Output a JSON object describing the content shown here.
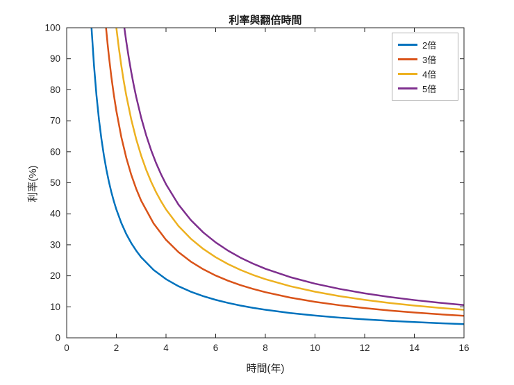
{
  "chart_data": {
    "type": "line",
    "title": "利率與翻倍時間",
    "xlabel": "時間(年)",
    "ylabel": "利率(%)",
    "xlim": [
      0,
      16
    ],
    "ylim": [
      0,
      100
    ],
    "x_ticks": [
      0,
      2,
      4,
      6,
      8,
      10,
      12,
      14,
      16
    ],
    "y_ticks": [
      0,
      10,
      20,
      30,
      40,
      50,
      60,
      70,
      80,
      90,
      100
    ],
    "grid": false,
    "legend_position": "top-right",
    "series": [
      {
        "name": "2倍",
        "color": "#0072BD",
        "points": [
          [
            1,
            100
          ],
          [
            1.1,
            87.84
          ],
          [
            1.2,
            78.18
          ],
          [
            1.3,
            70.43
          ],
          [
            1.4,
            64.07
          ],
          [
            1.5,
            58.74
          ],
          [
            1.6,
            54.22
          ],
          [
            1.7,
            50.34
          ],
          [
            1.8,
            46.97
          ],
          [
            1.9,
            44.03
          ],
          [
            2,
            41.42
          ],
          [
            2.2,
            37.04
          ],
          [
            2.4,
            33.48
          ],
          [
            2.6,
            30.56
          ],
          [
            2.8,
            28.11
          ],
          [
            3,
            25.99
          ],
          [
            3.5,
            21.9
          ],
          [
            4,
            18.92
          ],
          [
            4.5,
            16.65
          ],
          [
            5,
            14.87
          ],
          [
            5.5,
            13.43
          ],
          [
            6,
            12.25
          ],
          [
            6.5,
            11.25
          ],
          [
            7,
            10.41
          ],
          [
            7.5,
            9.68
          ],
          [
            8,
            9.05
          ],
          [
            9,
            8.01
          ],
          [
            10,
            7.18
          ],
          [
            11,
            6.5
          ],
          [
            12,
            5.95
          ],
          [
            13,
            5.48
          ],
          [
            14,
            5.08
          ],
          [
            15,
            4.73
          ],
          [
            16,
            4.43
          ]
        ]
      },
      {
        "name": "3倍",
        "color": "#D95319",
        "points": [
          [
            1.585,
            100
          ],
          [
            1.65,
            94.61
          ],
          [
            1.7,
            90.83
          ],
          [
            1.8,
            84.1
          ],
          [
            1.9,
            78.28
          ],
          [
            2,
            73.21
          ],
          [
            2.2,
            64.77
          ],
          [
            2.4,
            58.06
          ],
          [
            2.6,
            52.59
          ],
          [
            2.8,
            48.05
          ],
          [
            3,
            44.22
          ],
          [
            3.5,
            36.88
          ],
          [
            4,
            31.61
          ],
          [
            4.5,
            27.65
          ],
          [
            5,
            24.57
          ],
          [
            5.5,
            22.11
          ],
          [
            6,
            20.09
          ],
          [
            6.5,
            18.42
          ],
          [
            7,
            16.99
          ],
          [
            7.5,
            15.78
          ],
          [
            8,
            14.72
          ],
          [
            9,
            12.98
          ],
          [
            10,
            11.61
          ],
          [
            11,
            10.5
          ],
          [
            12,
            9.59
          ],
          [
            13,
            8.82
          ],
          [
            14,
            8.16
          ],
          [
            15,
            7.6
          ],
          [
            16,
            7.11
          ]
        ]
      },
      {
        "name": "4倍",
        "color": "#EDB120",
        "points": [
          [
            2,
            100
          ],
          [
            2.1,
            93.51
          ],
          [
            2.2,
            87.79
          ],
          [
            2.3,
            82.69
          ],
          [
            2.4,
            78.18
          ],
          [
            2.6,
            70.43
          ],
          [
            2.8,
            64.07
          ],
          [
            3,
            58.74
          ],
          [
            3.2,
            54.22
          ],
          [
            3.4,
            50.34
          ],
          [
            3.6,
            46.97
          ],
          [
            3.8,
            44.03
          ],
          [
            4,
            41.42
          ],
          [
            4.5,
            36.08
          ],
          [
            5,
            31.95
          ],
          [
            5.5,
            28.67
          ],
          [
            6,
            25.99
          ],
          [
            6.5,
            23.77
          ],
          [
            7,
            21.9
          ],
          [
            7.5,
            20.3
          ],
          [
            8,
            18.92
          ],
          [
            9,
            16.65
          ],
          [
            10,
            14.87
          ],
          [
            11,
            13.43
          ],
          [
            12,
            12.25
          ],
          [
            13,
            11.25
          ],
          [
            14,
            10.41
          ],
          [
            15,
            9.68
          ],
          [
            16,
            9.05
          ]
        ]
      },
      {
        "name": "5倍",
        "color": "#7E2F8E",
        "points": [
          [
            2.322,
            100
          ],
          [
            2.4,
            95.54
          ],
          [
            2.5,
            90.36
          ],
          [
            2.6,
            85.71
          ],
          [
            2.7,
            81.5
          ],
          [
            2.8,
            77.68
          ],
          [
            3,
            71.0
          ],
          [
            3.2,
            65.36
          ],
          [
            3.4,
            60.54
          ],
          [
            3.6,
            56.37
          ],
          [
            3.8,
            52.74
          ],
          [
            4,
            49.53
          ],
          [
            4.5,
            43.0
          ],
          [
            5,
            37.97
          ],
          [
            5.5,
            33.99
          ],
          [
            6,
            30.77
          ],
          [
            6.5,
            28.1
          ],
          [
            7,
            25.85
          ],
          [
            7.5,
            23.94
          ],
          [
            8,
            22.28
          ],
          [
            9,
            19.58
          ],
          [
            10,
            17.46
          ],
          [
            11,
            15.76
          ],
          [
            12,
            14.35
          ],
          [
            13,
            13.18
          ],
          [
            14,
            12.18
          ],
          [
            15,
            11.33
          ],
          [
            16,
            10.58
          ]
        ]
      }
    ]
  },
  "style": {
    "axis_color": "#262626",
    "tick_label_color": "#262626",
    "background": "#ffffff",
    "legend_border": "#b0b0b0",
    "line_width": 2.5
  }
}
